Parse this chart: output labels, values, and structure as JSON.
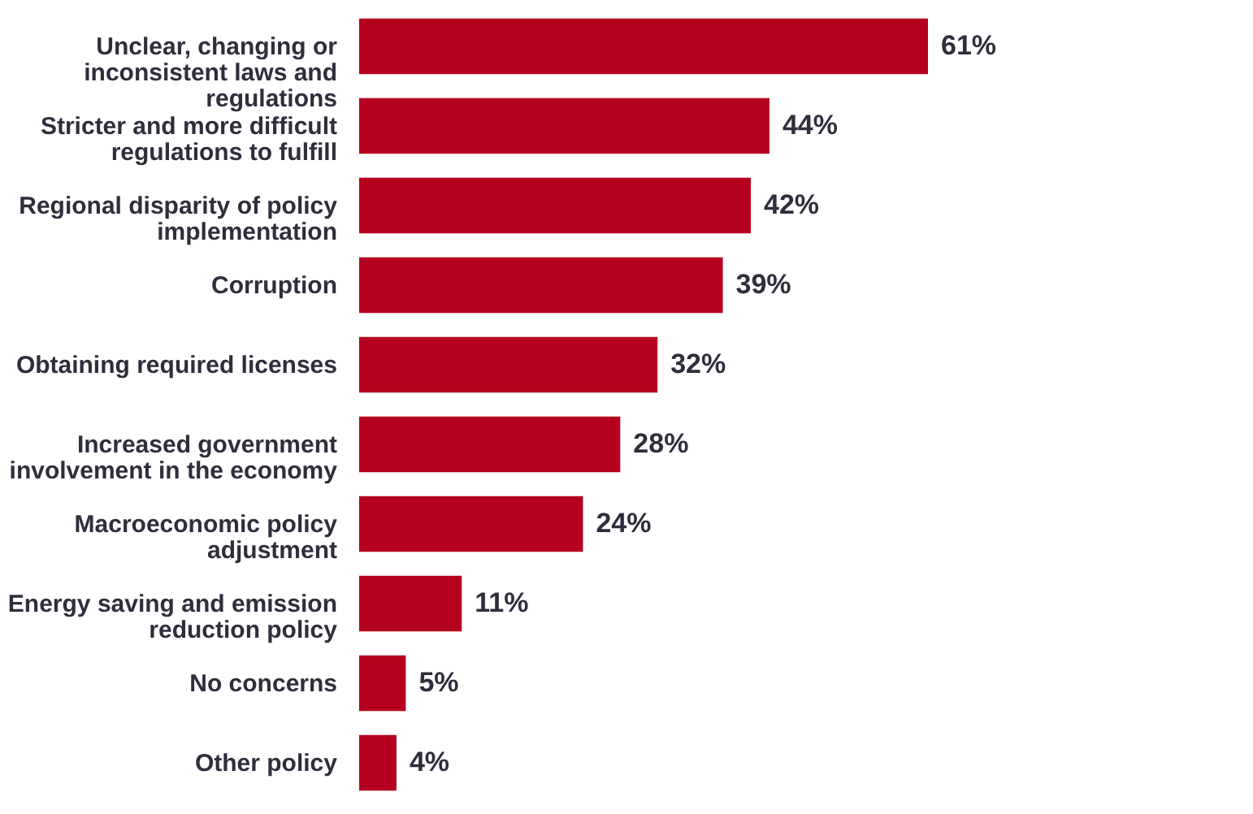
{
  "chart_data": {
    "type": "bar",
    "orientation": "horizontal",
    "categories": [
      "Unclear, changing or inconsistent laws and regulations",
      "Stricter and more difficult regulations to fulfill",
      "Regional disparity of policy implementation",
      "Corruption",
      "Obtaining required licenses",
      "Increased government involvement in the economy",
      "Macroeconomic policy adjustment",
      "Energy saving and emission reduction policy",
      "No concerns",
      "Other policy"
    ],
    "values": [
      61,
      44,
      42,
      39,
      32,
      28,
      24,
      11,
      5,
      4
    ],
    "value_labels": [
      "61%",
      "44%",
      "42%",
      "39%",
      "32%",
      "28%",
      "24%",
      "11%",
      "5%",
      "4%"
    ],
    "color": "#b5001f"
  }
}
